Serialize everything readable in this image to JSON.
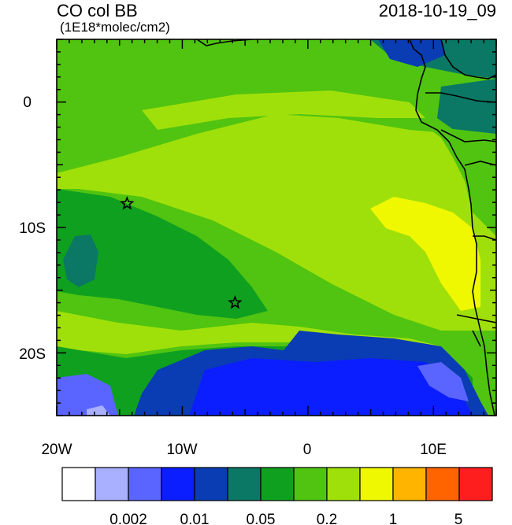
{
  "header": {
    "title": "CO col BB",
    "units": "(1E18*molec/cm2)",
    "datetime": "2018-10-19_09"
  },
  "axes": {
    "lon_ticks": [
      "20W",
      "10W",
      "0",
      "10E"
    ],
    "lat_ticks": [
      "0",
      "10S",
      "20S"
    ],
    "lon_range": [
      -20,
      15
    ],
    "lat_range": [
      -25,
      5
    ]
  },
  "colorbar": {
    "labels": [
      "0.002",
      "0.01",
      "0.05",
      "0.2",
      "1",
      "5"
    ],
    "colors": [
      "#ffffff",
      "#a8b0ff",
      "#5a64ff",
      "#0a1eff",
      "#0a3cb4",
      "#0a7864",
      "#10a020",
      "#50c410",
      "#a0e00a",
      "#f0f800",
      "#ffb400",
      "#ff6400",
      "#ff1e1e"
    ]
  },
  "markers": [
    {
      "name": "star",
      "lon": -14.4,
      "lat": -8.1
    },
    {
      "name": "star",
      "lon": -5.8,
      "lat": -16.0
    }
  ]
}
